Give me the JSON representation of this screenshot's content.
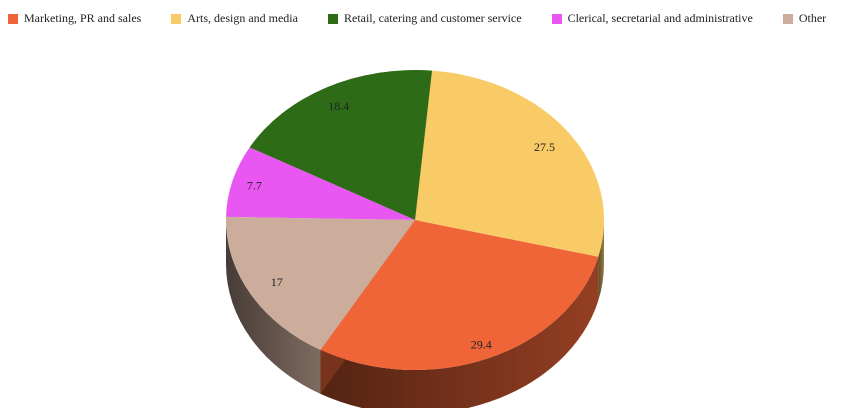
{
  "chart_data": {
    "type": "pie",
    "variant": "3d",
    "title": "",
    "legend_position": "top",
    "slices": [
      {
        "name": "Marketing, PR and sales",
        "value": 29.4,
        "label": "29.4",
        "color": "#ef6537"
      },
      {
        "name": "Arts, design and media",
        "value": 27.5,
        "label": "27.5",
        "color": "#f9cb67"
      },
      {
        "name": "Retail, catering and customer service",
        "value": 18.4,
        "label": "18.4",
        "color": "#2e6b16"
      },
      {
        "name": "Clerical, secretarial and administrative",
        "value": 7.7,
        "label": "7.7",
        "color": "#e857f2"
      },
      {
        "name": "Other",
        "value": 17,
        "label": "17",
        "color": "#ccac9b"
      }
    ]
  }
}
